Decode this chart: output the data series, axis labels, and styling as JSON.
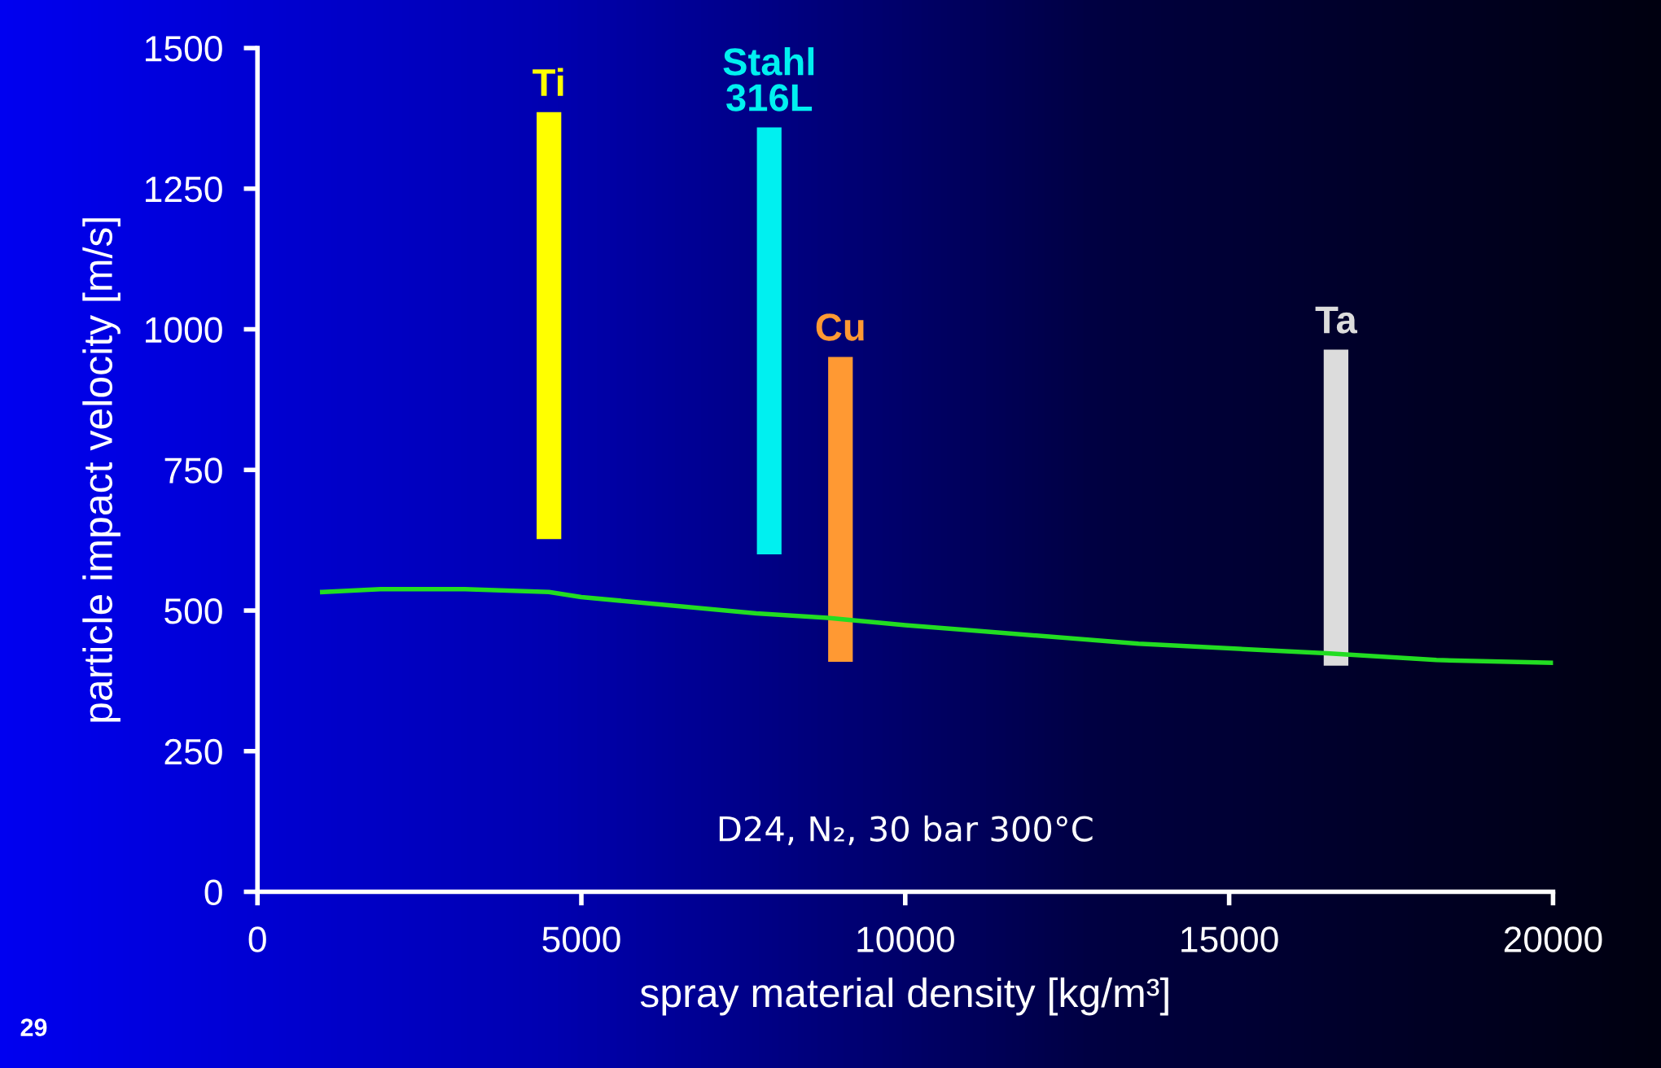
{
  "chart_data": {
    "type": "bar",
    "xlabel": "spray material density [kg/m³]",
    "ylabel": "particle impact velocity [m/s]",
    "xlim": [
      0,
      20000
    ],
    "xticks": [
      0,
      5000,
      10000,
      15000,
      20000
    ],
    "ylim": [
      0,
      1500
    ],
    "yticks": [
      0,
      250,
      500,
      750,
      1000,
      1250,
      1500
    ],
    "grid": false,
    "legend": false,
    "series": [
      {
        "name": "Ti",
        "color": "#ffff00",
        "x": [
          4500
        ],
        "base": [
          627
        ],
        "values": [
          759
        ]
      },
      {
        "name": "Stahl\n316L",
        "color": "#00f0f0",
        "x": [
          7900
        ],
        "base": [
          600
        ],
        "values": [
          759
        ]
      },
      {
        "name": "Cu",
        "color": "#ff9933",
        "x": [
          9000
        ],
        "base": [
          409
        ],
        "values": [
          542
        ]
      },
      {
        "name": "Ta",
        "color": "#dcdcdc",
        "x": [
          16650
        ],
        "base": [
          402
        ],
        "values": [
          562
        ]
      },
      {
        "type": "line",
        "color": "#22dd22",
        "x": [
          1000,
          1900,
          3200,
          4500,
          5000,
          7700,
          8800,
          10000,
          11000,
          13600,
          16500,
          18200,
          20000
        ],
        "values": [
          533,
          538,
          538,
          533,
          524,
          495,
          487,
          474,
          465,
          441,
          424,
          412,
          407
        ]
      }
    ],
    "annotations": [
      "D24, N₂, 30 bar 300°C",
      "29"
    ]
  }
}
